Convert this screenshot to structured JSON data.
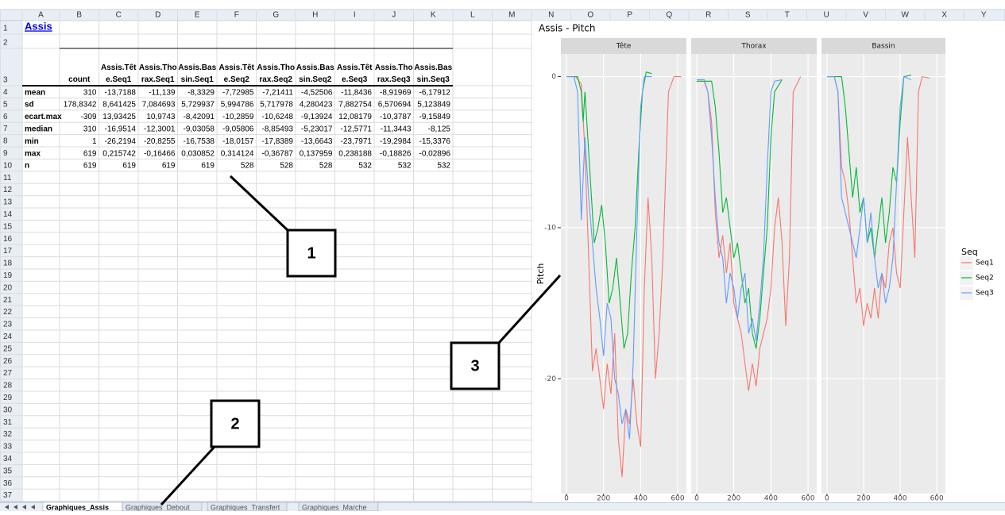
{
  "sheet": {
    "columns": [
      "A",
      "B",
      "C",
      "D",
      "E",
      "F",
      "G",
      "H",
      "I",
      "J",
      "K",
      "L",
      "M",
      "N",
      "O",
      "P",
      "Q",
      "R",
      "S",
      "T",
      "U",
      "V",
      "W",
      "X",
      "Y"
    ],
    "rows": [
      1,
      2,
      3,
      4,
      5,
      6,
      7,
      8,
      9,
      10,
      11,
      12,
      13,
      14,
      15,
      16,
      17,
      18,
      19,
      20,
      21,
      22,
      23,
      24,
      25,
      26,
      27,
      28,
      29,
      30,
      31,
      32,
      33,
      34,
      35,
      36,
      37
    ],
    "title": "Assis",
    "table": {
      "header": [
        "count",
        "Assis.Tête.Seq1",
        "Assis.Thorax.Seq1",
        "Assis.Bassin.Seq1",
        "Assis.Tête.Seq2",
        "Assis.Thorax.Seq2",
        "Assis.Bassin.Seq2",
        "Assis.Tête.Seq3",
        "Assis.Thorax.Seq3",
        "Assis.Bassin.Seq3"
      ],
      "rows": [
        {
          "label": "mean",
          "cells": [
            "310",
            "-13,7188",
            "-11,139",
            "-8,3329",
            "-7,72985",
            "-7,21411",
            "-4,52506",
            "-11,8436",
            "-8,91969",
            "-6,17912"
          ]
        },
        {
          "label": "sd",
          "cells": [
            "178,8342",
            "8,641425",
            "7,084693",
            "5,729937",
            "5,994786",
            "5,717978",
            "4,280423",
            "7,882754",
            "6,570694",
            "5,123849"
          ]
        },
        {
          "label": "ecart.max",
          "cells": [
            "-309",
            "13,93425",
            "10,9743",
            "-8,42091",
            "-10,2859",
            "-10,6248",
            "-9,13924",
            "12,08179",
            "-10,3787",
            "-9,15849"
          ]
        },
        {
          "label": "median",
          "cells": [
            "310",
            "-16,9514",
            "-12,3001",
            "-9,03058",
            "-9,05806",
            "-8,85493",
            "-5,23017",
            "-12,5771",
            "-11,3443",
            "-8,125"
          ]
        },
        {
          "label": "min",
          "cells": [
            "1",
            "-26,2194",
            "-20,8255",
            "-16,7538",
            "-18,0157",
            "-17,8389",
            "-13,6643",
            "-23,7971",
            "-19,2984",
            "-15,3376"
          ]
        },
        {
          "label": "max",
          "cells": [
            "619",
            "0,215742",
            "-0,16466",
            "0,030852",
            "0,314124",
            "-0,36787",
            "0,137959",
            "0,238188",
            "-0,18826",
            "-0,02896"
          ]
        },
        {
          "label": "n",
          "cells": [
            "619",
            "619",
            "619",
            "619",
            "528",
            "528",
            "528",
            "532",
            "532",
            "532"
          ]
        }
      ]
    }
  },
  "tabs": [
    "Graphiques_Assis",
    "Graphiques_Debout",
    "Graphiques_Transfert",
    "Graphiques_Marche"
  ],
  "callouts": [
    "1",
    "2",
    "3"
  ],
  "chart_data": {
    "type": "line",
    "title": "Assis -  Pitch",
    "ylabel": "Pitch",
    "xlim": [
      -30,
      647
    ],
    "ylim": [
      -27.6,
      1.5
    ],
    "xticks": [
      0,
      200,
      400,
      600
    ],
    "yticks": [
      0,
      -10,
      -20
    ],
    "grid": true,
    "legend": {
      "title": "Seq",
      "position": "right"
    },
    "series": [
      {
        "name": "Seq1",
        "color": "#f8766d"
      },
      {
        "name": "Seq2",
        "color": "#00ba38"
      },
      {
        "name": "Seq3",
        "color": "#619cff"
      }
    ],
    "facets": [
      {
        "title": "Tête",
        "lines": [
          {
            "x": [
              0,
              50,
              80,
              100,
              120,
              140,
              160,
              180,
              200,
              220,
              240,
              260,
              280,
              300,
              320,
              340,
              360,
              380,
              400,
              420,
              440,
              460,
              480,
              500,
              520,
              550,
              580,
              620
            ],
            "values": [
              0,
              0,
              -0.5,
              -5,
              -12,
              -19.5,
              -18,
              -20,
              -22,
              -19,
              -21,
              -17,
              -24,
              -26.5,
              -22,
              -23,
              -20,
              -23,
              -24.5,
              -14,
              -8,
              -12,
              -20,
              -17,
              -12,
              -1,
              0,
              0
            ]
          },
          {
            "x": [
              0,
              60,
              80,
              90,
              100,
              120,
              150,
              170,
              190,
              210,
              230,
              250,
              270,
              290,
              310,
              330,
              350,
              370,
              390,
              410,
              430,
              460
            ],
            "values": [
              0,
              0,
              -1,
              -3,
              -1,
              -5,
              -11,
              -10,
              -8.5,
              -11,
              -15,
              -14,
              -12,
              -15,
              -18,
              -17,
              -13,
              -10,
              -5,
              -1,
              0.3,
              0.2
            ]
          },
          {
            "x": [
              0,
              40,
              60,
              80,
              100,
              120,
              140,
              160,
              180,
              200,
              220,
              240,
              260,
              280,
              300,
              320,
              340,
              360,
              380,
              400,
              420,
              460
            ],
            "values": [
              0,
              0,
              -1,
              -9.5,
              -4,
              -8,
              -11,
              -14,
              -16,
              -18.5,
              -15,
              -16,
              -20,
              -21,
              -23,
              -22,
              -24,
              -19,
              -10,
              -2,
              0,
              0
            ]
          }
        ]
      },
      {
        "title": "Thorax",
        "lines": [
          {
            "x": [
              0,
              40,
              60,
              80,
              100,
              120,
              140,
              160,
              180,
              200,
              220,
              240,
              260,
              280,
              300,
              320,
              340,
              360,
              380,
              400,
              420,
              440,
              460,
              480,
              500,
              520,
              560
            ],
            "values": [
              -0.3,
              -0.3,
              -1,
              -3,
              -9,
              -12,
              -10.5,
              -13,
              -11,
              -15,
              -16,
              -17,
              -19,
              -20.8,
              -19,
              -20.5,
              -18,
              -17,
              -16,
              -14,
              -10,
              -8,
              -11,
              -16.5,
              -12,
              -1,
              0
            ]
          },
          {
            "x": [
              0,
              80,
              100,
              120,
              140,
              160,
              180,
              200,
              220,
              240,
              260,
              280,
              300,
              320,
              340,
              360,
              380,
              400,
              420,
              460
            ],
            "values": [
              -0.3,
              -0.3,
              -2,
              -5,
              -9,
              -8,
              -10,
              -12,
              -11,
              -13,
              -15,
              -14,
              -17,
              -18,
              -16,
              -13,
              -10,
              -4,
              -1,
              -0.2
            ]
          },
          {
            "x": [
              0,
              40,
              60,
              80,
              100,
              120,
              140,
              160,
              180,
              200,
              220,
              240,
              260,
              280,
              300,
              320,
              340,
              360,
              380,
              400,
              420,
              460
            ],
            "values": [
              -0.2,
              -0.2,
              -1,
              -4,
              -8,
              -11,
              -12,
              -15,
              -13,
              -14,
              -16,
              -14,
              -13,
              -17,
              -16,
              -17.5,
              -15,
              -12,
              -6,
              -1,
              -0.3,
              -0.2
            ]
          }
        ]
      },
      {
        "title": "Bassin",
        "lines": [
          {
            "x": [
              0,
              40,
              60,
              80,
              100,
              120,
              140,
              160,
              180,
              200,
              220,
              240,
              260,
              280,
              300,
              320,
              340,
              360,
              380,
              400,
              420,
              440,
              460,
              480,
              500,
              520,
              560
            ],
            "values": [
              0,
              0,
              -1,
              -6,
              -7,
              -9,
              -12,
              -15,
              -14,
              -16.5,
              -15,
              -16,
              -14,
              -16,
              -13,
              -14,
              -11,
              -10,
              -13,
              -14,
              -9,
              -4,
              -8,
              -12,
              -1,
              0,
              -0.1
            ]
          },
          {
            "x": [
              0,
              80,
              100,
              120,
              140,
              160,
              180,
              200,
              220,
              240,
              260,
              280,
              300,
              320,
              340,
              360,
              380,
              400,
              420,
              460
            ],
            "values": [
              0,
              0,
              -2,
              -5,
              -8,
              -6,
              -9,
              -8,
              -11,
              -10,
              -12,
              -10,
              -8,
              -11,
              -9,
              -6,
              -7,
              -3,
              0,
              0.1
            ]
          },
          {
            "x": [
              0,
              40,
              60,
              80,
              100,
              120,
              140,
              160,
              180,
              200,
              220,
              240,
              260,
              280,
              300,
              320,
              340,
              360,
              380,
              400,
              420,
              460
            ],
            "values": [
              0,
              0,
              -1,
              -8,
              -9,
              -10,
              -11,
              -12,
              -10,
              -8,
              -11,
              -9,
              -12,
              -14,
              -13,
              -15,
              -14,
              -12,
              -7,
              -2,
              0,
              -0.2
            ]
          }
        ]
      }
    ]
  }
}
